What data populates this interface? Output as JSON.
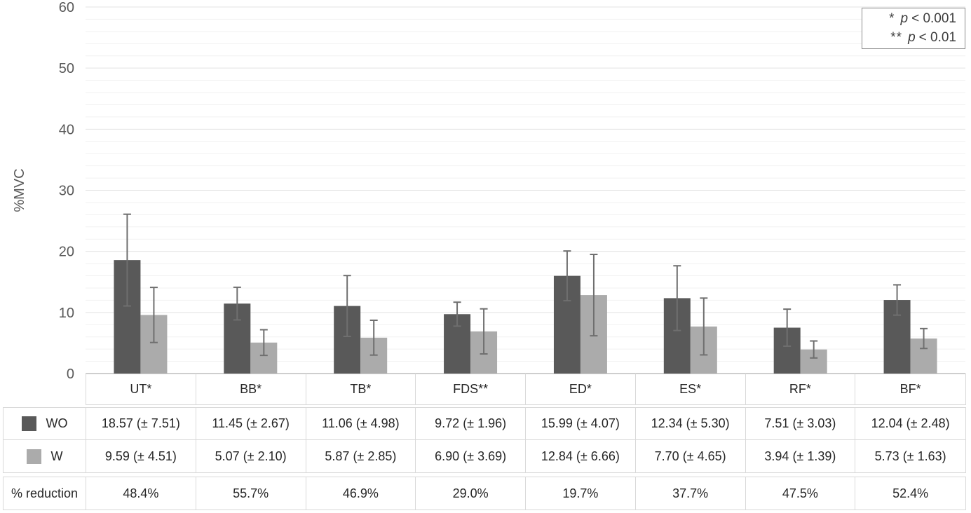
{
  "legend": {
    "items": [
      {
        "marker": "*",
        "variable": "p",
        "text": "< 0.001"
      },
      {
        "marker": "**",
        "variable": "p",
        "text": "< 0.01"
      }
    ]
  },
  "chart_data": {
    "type": "bar",
    "title": "",
    "xlabel": "",
    "ylabel": "%MVC",
    "ylim": [
      0,
      60
    ],
    "y_major_ticks": [
      0,
      10,
      20,
      30,
      40,
      50,
      60
    ],
    "y_minor_step": 2,
    "grid": true,
    "legend_position": "top-right",
    "categories": [
      "UT*",
      "BB*",
      "TB*",
      "FDS**",
      "ED*",
      "ES*",
      "RF*",
      "BF*"
    ],
    "series": [
      {
        "name": "WO",
        "color": "#595959",
        "values": [
          18.57,
          11.45,
          11.06,
          9.72,
          15.99,
          12.34,
          7.51,
          12.04
        ],
        "errors": [
          7.51,
          2.67,
          4.98,
          1.96,
          4.07,
          5.3,
          3.03,
          2.48
        ]
      },
      {
        "name": "W",
        "color": "#ababab",
        "values": [
          9.59,
          5.07,
          5.87,
          6.9,
          12.84,
          7.7,
          3.94,
          5.73
        ],
        "errors": [
          4.51,
          2.1,
          2.85,
          3.69,
          6.66,
          4.65,
          1.39,
          1.63
        ]
      }
    ],
    "colors": {
      "error_bar": "#6f6f6f",
      "axis_line": "#b0b0b0",
      "major_grid": "#e3e3e3",
      "minor_grid": "#f1f1f1",
      "tick_label": "#595959"
    }
  },
  "table": {
    "rows": [
      {
        "label": "WO",
        "values": [
          "18.57 (± 7.51)",
          "11.45 (± 2.67)",
          "11.06 (± 4.98)",
          "9.72 (± 1.96)",
          "15.99 (± 4.07)",
          "12.34 (± 5.30)",
          "7.51 (± 3.03)",
          "12.04 (± 2.48)"
        ]
      },
      {
        "label": "W",
        "values": [
          "9.59 (± 4.51)",
          "5.07 (± 2.10)",
          "5.87 (± 2.85)",
          "6.90 (± 3.69)",
          "12.84 (± 6.66)",
          "7.70 (± 4.65)",
          "3.94 (± 1.39)",
          "5.73 (± 1.63)"
        ]
      },
      {
        "label": "% reduction",
        "values": [
          "48.4%",
          "55.7%",
          "46.9%",
          "29.0%",
          "19.7%",
          "37.7%",
          "47.5%",
          "52.4%"
        ]
      }
    ]
  }
}
